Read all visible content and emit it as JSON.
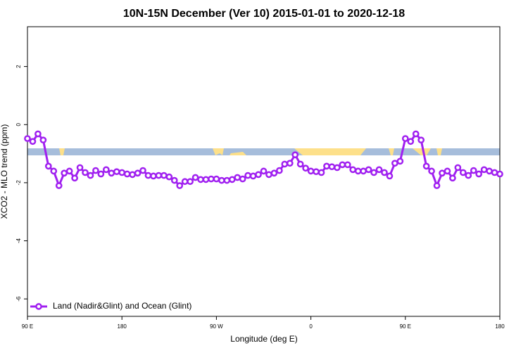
{
  "chart_data": {
    "type": "line",
    "title": "10N-15N December (Ver 10)   2015-01-01 to 2020-12-18",
    "x_label": "Longitude (deg E)",
    "y_label": "XCO2 - MLO trend (ppm)",
    "xlim": [
      90,
      540
    ],
    "ylim": [
      -6.6,
      3.37
    ],
    "xticks": [
      {
        "value": 90,
        "label": "90 E"
      },
      {
        "value": 180,
        "label": "180"
      },
      {
        "value": 270,
        "label": "90 W"
      },
      {
        "value": 360,
        "label": "0"
      },
      {
        "value": 450,
        "label": "90 E"
      },
      {
        "value": 540,
        "label": "180"
      }
    ],
    "yticks": [
      -6,
      -4,
      -2,
      0,
      2
    ],
    "x": [
      90,
      95,
      100,
      105,
      110,
      115,
      120,
      125,
      130,
      135,
      140,
      145,
      150,
      155,
      160,
      165,
      170,
      175,
      180,
      185,
      190,
      195,
      200,
      205,
      210,
      215,
      220,
      225,
      230,
      235,
      240,
      245,
      250,
      255,
      260,
      265,
      270,
      275,
      280,
      285,
      290,
      295,
      300,
      305,
      310,
      315,
      320,
      325,
      330,
      335,
      340,
      345,
      350,
      355,
      360,
      365,
      370,
      375,
      380,
      385,
      390,
      395,
      400,
      405,
      410,
      415,
      420,
      425,
      430,
      435,
      440,
      445,
      450,
      455,
      460,
      465,
      470,
      475,
      480,
      485,
      490,
      495,
      500,
      505,
      510,
      515,
      520,
      525,
      530,
      535,
      540
    ],
    "legend_position": "bottom-left",
    "series": [
      {
        "name": "Land (Nadir&Glint) and Ocean (Glint)",
        "color": "#a020f0",
        "values": [
          -0.48,
          -0.58,
          -0.32,
          -0.53,
          -1.43,
          -1.6,
          -2.1,
          -1.67,
          -1.6,
          -1.84,
          -1.48,
          -1.65,
          -1.75,
          -1.58,
          -1.7,
          -1.55,
          -1.67,
          -1.62,
          -1.65,
          -1.7,
          -1.72,
          -1.67,
          -1.58,
          -1.75,
          -1.77,
          -1.75,
          -1.75,
          -1.8,
          -1.92,
          -2.1,
          -1.96,
          -1.96,
          -1.82,
          -1.89,
          -1.89,
          -1.87,
          -1.87,
          -1.92,
          -1.92,
          -1.89,
          -1.82,
          -1.87,
          -1.75,
          -1.77,
          -1.72,
          -1.6,
          -1.72,
          -1.67,
          -1.58,
          -1.36,
          -1.33,
          -1.04,
          -1.36,
          -1.5,
          -1.6,
          -1.62,
          -1.65,
          -1.43,
          -1.45,
          -1.48,
          -1.38,
          -1.38,
          -1.55,
          -1.6,
          -1.6,
          -1.55,
          -1.65,
          -1.55,
          -1.65,
          -1.77,
          -1.33,
          -1.26,
          -0.48,
          -0.58,
          -0.32,
          -0.53,
          -1.43,
          -1.6,
          -2.1,
          -1.67,
          -1.6,
          -1.84,
          -1.48,
          -1.65,
          -1.75,
          -1.58,
          -1.7,
          -1.55,
          -1.6,
          -1.65,
          -1.7
        ]
      }
    ]
  }
}
